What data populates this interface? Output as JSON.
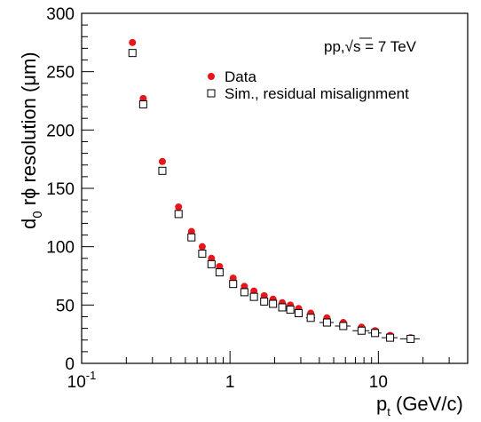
{
  "chart_data": {
    "type": "scatter",
    "annotation": {
      "prefix": "pp,",
      "sqrt": "√s",
      "suffix": " = 7 TeV"
    },
    "xlabel": {
      "main": "p",
      "sub": "t",
      "rest": " (GeV/c)"
    },
    "ylabel": {
      "main": "d",
      "sub": "0",
      "rest": " rϕ resolution (μm)"
    },
    "x_log": true,
    "xlim": [
      0.1,
      40
    ],
    "ylim": [
      0,
      300
    ],
    "x_tick_labels": [
      {
        "value": 0.1,
        "base": "10",
        "exp": "-1"
      },
      {
        "value": 1,
        "base": "1",
        "exp": ""
      },
      {
        "value": 10,
        "base": "10",
        "exp": ""
      }
    ],
    "y_ticks": [
      0,
      50,
      100,
      150,
      200,
      250,
      300
    ],
    "y_tick_labels": [
      "0",
      "50",
      "100",
      "150",
      "200",
      "250",
      "300"
    ],
    "grid": false,
    "legend_position": "top-right",
    "series": [
      {
        "name": "Data",
        "marker": "filled-circle",
        "color": "#e8161b",
        "points": [
          {
            "x": 0.22,
            "y": 275
          },
          {
            "x": 0.26,
            "y": 227
          },
          {
            "x": 0.35,
            "y": 173
          },
          {
            "x": 0.45,
            "y": 134
          },
          {
            "x": 0.55,
            "y": 113
          },
          {
            "x": 0.65,
            "y": 100
          },
          {
            "x": 0.75,
            "y": 90
          },
          {
            "x": 0.85,
            "y": 83
          },
          {
            "x": 1.05,
            "y": 73
          },
          {
            "x": 1.25,
            "y": 66
          },
          {
            "x": 1.45,
            "y": 62
          },
          {
            "x": 1.7,
            "y": 58
          },
          {
            "x": 1.95,
            "y": 55
          },
          {
            "x": 2.25,
            "y": 52
          },
          {
            "x": 2.55,
            "y": 50
          },
          {
            "x": 2.9,
            "y": 47
          },
          {
            "x": 3.5,
            "y": 43
          },
          {
            "x": 4.5,
            "y": 39
          },
          {
            "x": 5.8,
            "y": 35
          },
          {
            "x": 7.7,
            "y": 31
          },
          {
            "x": 9.5,
            "y": 28
          },
          {
            "x": 12.0,
            "y": 24
          },
          {
            "x": 16.5,
            "y": 22
          }
        ]
      },
      {
        "name": "Sim., residual misalignment",
        "marker": "open-square",
        "color": "#000000",
        "points": [
          {
            "x": 0.22,
            "y": 266,
            "xerr": 0
          },
          {
            "x": 0.26,
            "y": 222,
            "xerr": 0
          },
          {
            "x": 0.35,
            "y": 165,
            "xerr": 0
          },
          {
            "x": 0.45,
            "y": 128,
            "xerr": 0
          },
          {
            "x": 0.55,
            "y": 108,
            "xerr": 0
          },
          {
            "x": 0.65,
            "y": 94,
            "xerr": 0
          },
          {
            "x": 0.75,
            "y": 85,
            "xerr": 0
          },
          {
            "x": 0.85,
            "y": 78,
            "xerr": 0
          },
          {
            "x": 1.05,
            "y": 68,
            "xerr": 0
          },
          {
            "x": 1.25,
            "y": 61,
            "xerr": 0
          },
          {
            "x": 1.45,
            "y": 57,
            "xerr": 0
          },
          {
            "x": 1.7,
            "y": 53,
            "xerr": 0
          },
          {
            "x": 1.95,
            "y": 51,
            "xerr": 0
          },
          {
            "x": 2.25,
            "y": 48,
            "xerr": 0
          },
          {
            "x": 2.55,
            "y": 46,
            "xerr": 0
          },
          {
            "x": 2.9,
            "y": 43,
            "xerr": 0
          },
          {
            "x": 3.5,
            "y": 39,
            "xerr": 0.25
          },
          {
            "x": 4.5,
            "y": 35,
            "xerr": 0.5
          },
          {
            "x": 5.8,
            "y": 32,
            "xerr": 0.7
          },
          {
            "x": 7.7,
            "y": 28,
            "xerr": 1.0
          },
          {
            "x": 9.5,
            "y": 26,
            "xerr": 1.0
          },
          {
            "x": 12.0,
            "y": 22,
            "xerr": 1.5
          },
          {
            "x": 16.5,
            "y": 21,
            "xerr": 2.5
          }
        ]
      }
    ]
  }
}
